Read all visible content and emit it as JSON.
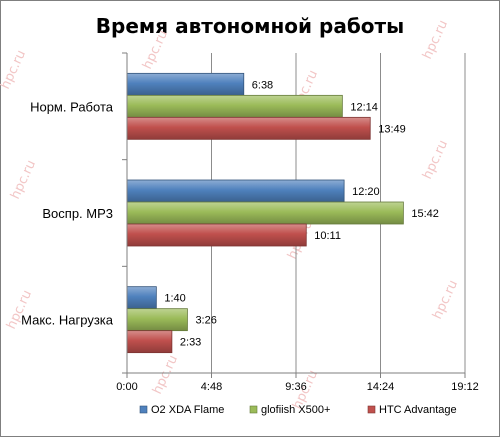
{
  "chart_data": {
    "type": "bar",
    "orientation": "horizontal",
    "title": "Время автономной работы",
    "categories": [
      "Норм. Работа",
      "Воспр. MP3",
      "Макс. Нагрузка"
    ],
    "series": [
      {
        "name": "O2 XDA Flame",
        "color": "#4f81bd",
        "values_minutes": [
          398,
          740,
          100
        ],
        "labels": [
          "6:38",
          "12:20",
          "1:40"
        ]
      },
      {
        "name": "glofiish X500+",
        "color": "#9bbb59",
        "values_minutes": [
          734,
          942,
          206
        ],
        "labels": [
          "12:14",
          "15:42",
          "3:26"
        ]
      },
      {
        "name": "HTC Advantage",
        "color": "#c0504d",
        "values_minutes": [
          829,
          611,
          153
        ],
        "labels": [
          "13:49",
          "10:11",
          "2:33"
        ]
      }
    ],
    "x_ticks_minutes": [
      0,
      288,
      576,
      864,
      1152
    ],
    "x_tick_labels": [
      "0:00",
      "4:48",
      "9:36",
      "14:24",
      "19:12"
    ],
    "xlim_minutes": [
      0,
      1152
    ],
    "grid": true,
    "legend_position": "bottom"
  },
  "watermark": "hpc.ru"
}
